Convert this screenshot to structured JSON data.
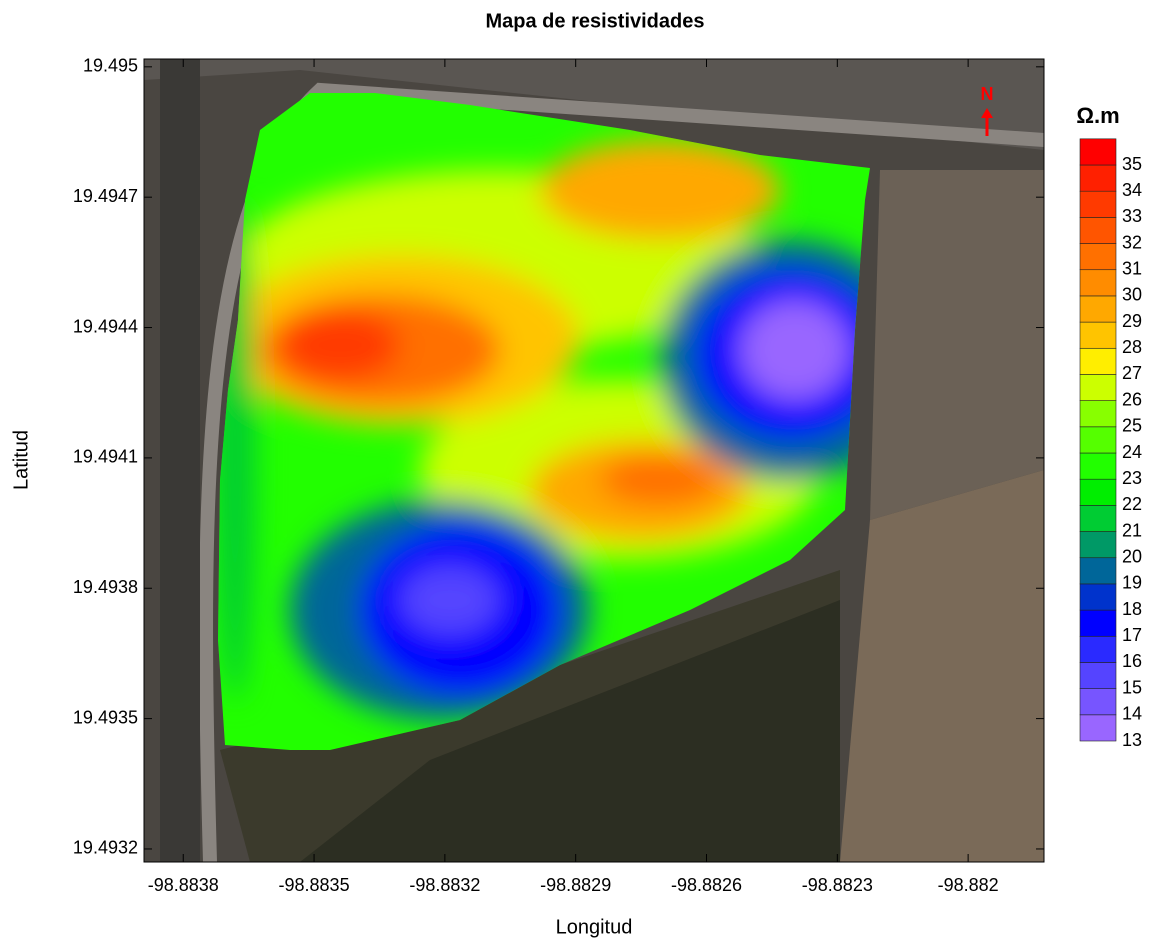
{
  "chart_data": {
    "type": "contour",
    "title": "Mapa de resistividades",
    "xlabel": "Longitud",
    "ylabel": "Latitud",
    "north_label": "N",
    "colorbar_title": "Ω.m",
    "xlim": [
      -98.88389,
      -98.881826
    ],
    "ylim": [
      19.49317,
      19.495018
    ],
    "xticks": [
      -98.8838,
      -98.8835,
      -98.8832,
      -98.8829,
      -98.8826,
      -98.8823,
      -98.882
    ],
    "yticks": [
      19.4932,
      19.4935,
      19.4938,
      19.4941,
      19.4944,
      19.4947,
      19.495
    ],
    "levels": [
      13,
      14,
      15,
      16,
      17,
      18,
      19,
      20,
      21,
      22,
      23,
      24,
      25,
      26,
      27,
      28,
      29,
      30,
      31,
      32,
      33,
      34,
      35
    ],
    "colors": [
      "#9966ff",
      "#7755ff",
      "#5544ff",
      "#2a2aff",
      "#0000ff",
      "#0033cc",
      "#006699",
      "#009966",
      "#00cc33",
      "#00ee00",
      "#22ff00",
      "#55ff00",
      "#88ff00",
      "#ccff00",
      "#ffee00",
      "#ffc400",
      "#ffa800",
      "#ff8c00",
      "#ff7000",
      "#ff5500",
      "#ff3a00",
      "#ff2000",
      "#ff0000"
    ]
  }
}
